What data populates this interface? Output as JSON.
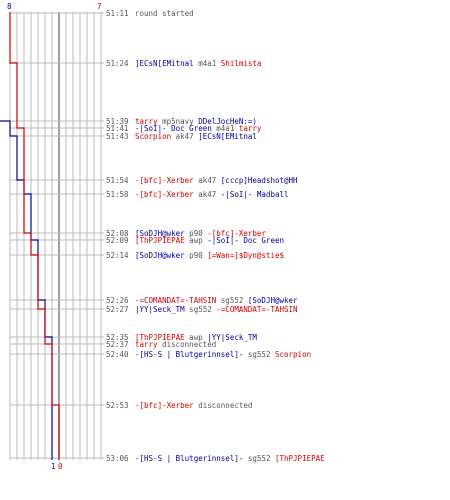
{
  "scores": {
    "blue_start": "8",
    "red_start": "7",
    "blue_end": "1",
    "red_end": "0"
  },
  "colors": {
    "blue": "#000099",
    "red": "#cc0000",
    "gray": "#555555",
    "grid": "#bbbbbb"
  },
  "events": [
    {
      "time": "51:11",
      "parts": [
        {
          "t": "round started",
          "c": "gray"
        }
      ]
    },
    {
      "time": "51:24",
      "parts": [
        {
          "t": "]ECsN[EMitnal",
          "c": "blue"
        },
        {
          "t": " m4a1 ",
          "c": "gray"
        },
        {
          "t": "Shilmista",
          "c": "red"
        }
      ]
    },
    {
      "time": "51:39",
      "parts": [
        {
          "t": "tarry",
          "c": "red"
        },
        {
          "t": " mp5navy ",
          "c": "gray"
        },
        {
          "t": "DDelJocHeN:=)",
          "c": "blue"
        }
      ]
    },
    {
      "time": "51:41",
      "parts": [
        {
          "t": "-|SoI|- Doc Green",
          "c": "blue"
        },
        {
          "t": " m4a1 ",
          "c": "gray"
        },
        {
          "t": "tarry",
          "c": "red"
        }
      ]
    },
    {
      "time": "51:43",
      "parts": [
        {
          "t": "Scorpion",
          "c": "red"
        },
        {
          "t": " ak47 ",
          "c": "gray"
        },
        {
          "t": "]ECsN[EMitnal",
          "c": "blue"
        }
      ]
    },
    {
      "time": "51:54",
      "parts": [
        {
          "t": "-[bfc]-Xerber",
          "c": "red"
        },
        {
          "t": " ak47 ",
          "c": "gray"
        },
        {
          "t": "[cccp]Headshot@HH",
          "c": "blue"
        }
      ]
    },
    {
      "time": "51:58",
      "parts": [
        {
          "t": "-[bfc]-Xerber",
          "c": "red"
        },
        {
          "t": " ak47 ",
          "c": "gray"
        },
        {
          "t": "-|SoI|- Madball",
          "c": "blue"
        }
      ]
    },
    {
      "time": "52:08",
      "parts": [
        {
          "t": "[SoDJH@wker",
          "c": "blue"
        },
        {
          "t": " p90 ",
          "c": "gray"
        },
        {
          "t": "-[bfc]-Xerber",
          "c": "red"
        }
      ]
    },
    {
      "time": "52:09",
      "parts": [
        {
          "t": "[ThPJPIEPAE",
          "c": "red"
        },
        {
          "t": " awp ",
          "c": "gray"
        },
        {
          "t": "-|SoI|- Doc Green",
          "c": "blue"
        }
      ]
    },
    {
      "time": "52:14",
      "parts": [
        {
          "t": "[SoDJH@wker",
          "c": "blue"
        },
        {
          "t": " p90 ",
          "c": "gray"
        },
        {
          "t": "[=Wan=]$Dyn@stie$",
          "c": "red"
        }
      ]
    },
    {
      "time": "52:26",
      "parts": [
        {
          "t": "-=COMANDAT=-TAHSIN",
          "c": "red"
        },
        {
          "t": " sg552 ",
          "c": "gray"
        },
        {
          "t": "[SoDJH@wker",
          "c": "blue"
        }
      ]
    },
    {
      "time": "52:27",
      "parts": [
        {
          "t": "|YY|Seck_TM",
          "c": "blue"
        },
        {
          "t": " sg552 ",
          "c": "gray"
        },
        {
          "t": "-=COMANDAT=-TAHSIN",
          "c": "red"
        }
      ]
    },
    {
      "time": "52:35",
      "parts": [
        {
          "t": "[ThPJPIEPAE",
          "c": "red"
        },
        {
          "t": " awp ",
          "c": "gray"
        },
        {
          "t": "|YY|Seck_TM",
          "c": "blue"
        }
      ]
    },
    {
      "time": "52:37",
      "parts": [
        {
          "t": "tarry",
          "c": "red"
        },
        {
          "t": " disconnected",
          "c": "gray"
        }
      ]
    },
    {
      "time": "52:40",
      "parts": [
        {
          "t": "-[HS-S | Blutgerinnsel]-",
          "c": "blue"
        },
        {
          "t": " sg552 ",
          "c": "gray"
        },
        {
          "t": "Scorpion",
          "c": "red"
        }
      ]
    },
    {
      "time": "52:53",
      "parts": [
        {
          "t": "-[bfc]-Xerber",
          "c": "red"
        },
        {
          "t": " disconnected",
          "c": "gray"
        }
      ]
    },
    {
      "time": "53:06",
      "parts": [
        {
          "t": "-[HS-S | Blutgerinnsel]-",
          "c": "blue"
        },
        {
          "t": " sg552 ",
          "c": "gray"
        },
        {
          "t": "[ThPJPIEPAE",
          "c": "red"
        }
      ]
    }
  ],
  "blue_alive": [
    8,
    8,
    7,
    7,
    6,
    5,
    4,
    4,
    3,
    3,
    2,
    2,
    1,
    1,
    1,
    1,
    1
  ],
  "red_alive": [
    7,
    6,
    6,
    5,
    5,
    5,
    5,
    4,
    4,
    3,
    3,
    2,
    2,
    1,
    1,
    0,
    0
  ]
}
